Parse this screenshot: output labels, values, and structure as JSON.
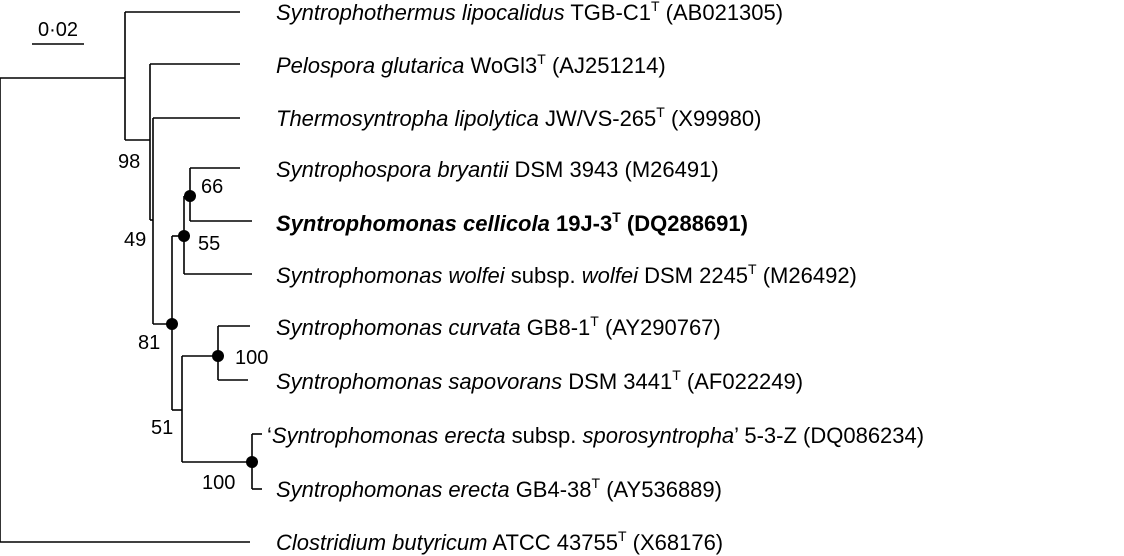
{
  "scale_bar": {
    "label": "0·02"
  },
  "taxa": [
    {
      "id": "t0",
      "parts": [
        {
          "t": "Syntrophothermus lipocalidus",
          "i": true
        },
        {
          "t": " TGB-C1"
        },
        {
          "t": "T",
          "sup": true
        },
        {
          "t": " (AB021305)"
        }
      ]
    },
    {
      "id": "t1",
      "parts": [
        {
          "t": "Pelospora glutarica",
          "i": true
        },
        {
          "t": " WoGl3"
        },
        {
          "t": "T",
          "sup": true
        },
        {
          "t": " (AJ251214)"
        }
      ]
    },
    {
      "id": "t2",
      "parts": [
        {
          "t": "Thermosyntropha lipolytica",
          "i": true
        },
        {
          "t": " JW/VS-265"
        },
        {
          "t": "T",
          "sup": true
        },
        {
          "t": " (X99980)"
        }
      ]
    },
    {
      "id": "t3",
      "parts": [
        {
          "t": "Syntrophospora bryantii",
          "i": true
        },
        {
          "t": " DSM 3943 (M26491)"
        }
      ]
    },
    {
      "id": "t4",
      "bold": true,
      "parts": [
        {
          "t": "Syntrophomonas cellicola",
          "i": true
        },
        {
          "t": " 19J-3"
        },
        {
          "t": "T",
          "sup": true
        },
        {
          "t": " (DQ288691)"
        }
      ]
    },
    {
      "id": "t5",
      "parts": [
        {
          "t": "Syntrophomonas wolfei",
          "i": true
        },
        {
          "t": " subsp. "
        },
        {
          "t": "wolfei",
          "i": true
        },
        {
          "t": " DSM 2245"
        },
        {
          "t": "T",
          "sup": true
        },
        {
          "t": " (M26492)"
        }
      ]
    },
    {
      "id": "t6",
      "parts": [
        {
          "t": "Syntrophomonas curvata",
          "i": true
        },
        {
          "t": " GB8-1"
        },
        {
          "t": "T",
          "sup": true
        },
        {
          "t": " (AY290767)"
        }
      ]
    },
    {
      "id": "t7",
      "parts": [
        {
          "t": "Syntrophomonas sapovorans",
          "i": true
        },
        {
          "t": " DSM 3441"
        },
        {
          "t": "T",
          "sup": true
        },
        {
          "t": " (AF022249)"
        }
      ]
    },
    {
      "id": "t8",
      "parts": [
        {
          "t": "‘"
        },
        {
          "t": "Syntrophomonas erecta",
          "i": true
        },
        {
          "t": " subsp. "
        },
        {
          "t": "sporosyntropha",
          "i": true
        },
        {
          "t": "’ 5-3-Z (DQ086234)"
        }
      ]
    },
    {
      "id": "t9",
      "parts": [
        {
          "t": "Syntrophomonas erecta",
          "i": true
        },
        {
          "t": " GB4-38"
        },
        {
          "t": "T",
          "sup": true
        },
        {
          "t": " (AY536889)"
        }
      ]
    },
    {
      "id": "t10",
      "parts": [
        {
          "t": "Clostridium butyricum",
          "i": true
        },
        {
          "t": " ATCC 43755"
        },
        {
          "t": "T",
          "sup": true
        },
        {
          "t": " (X68176)"
        }
      ]
    }
  ],
  "bootstrap": {
    "n98": "98",
    "n49": "49",
    "n66": "66",
    "n55": "55",
    "n81": "81",
    "n100a": "100",
    "n51": "51",
    "n100b": "100"
  }
}
